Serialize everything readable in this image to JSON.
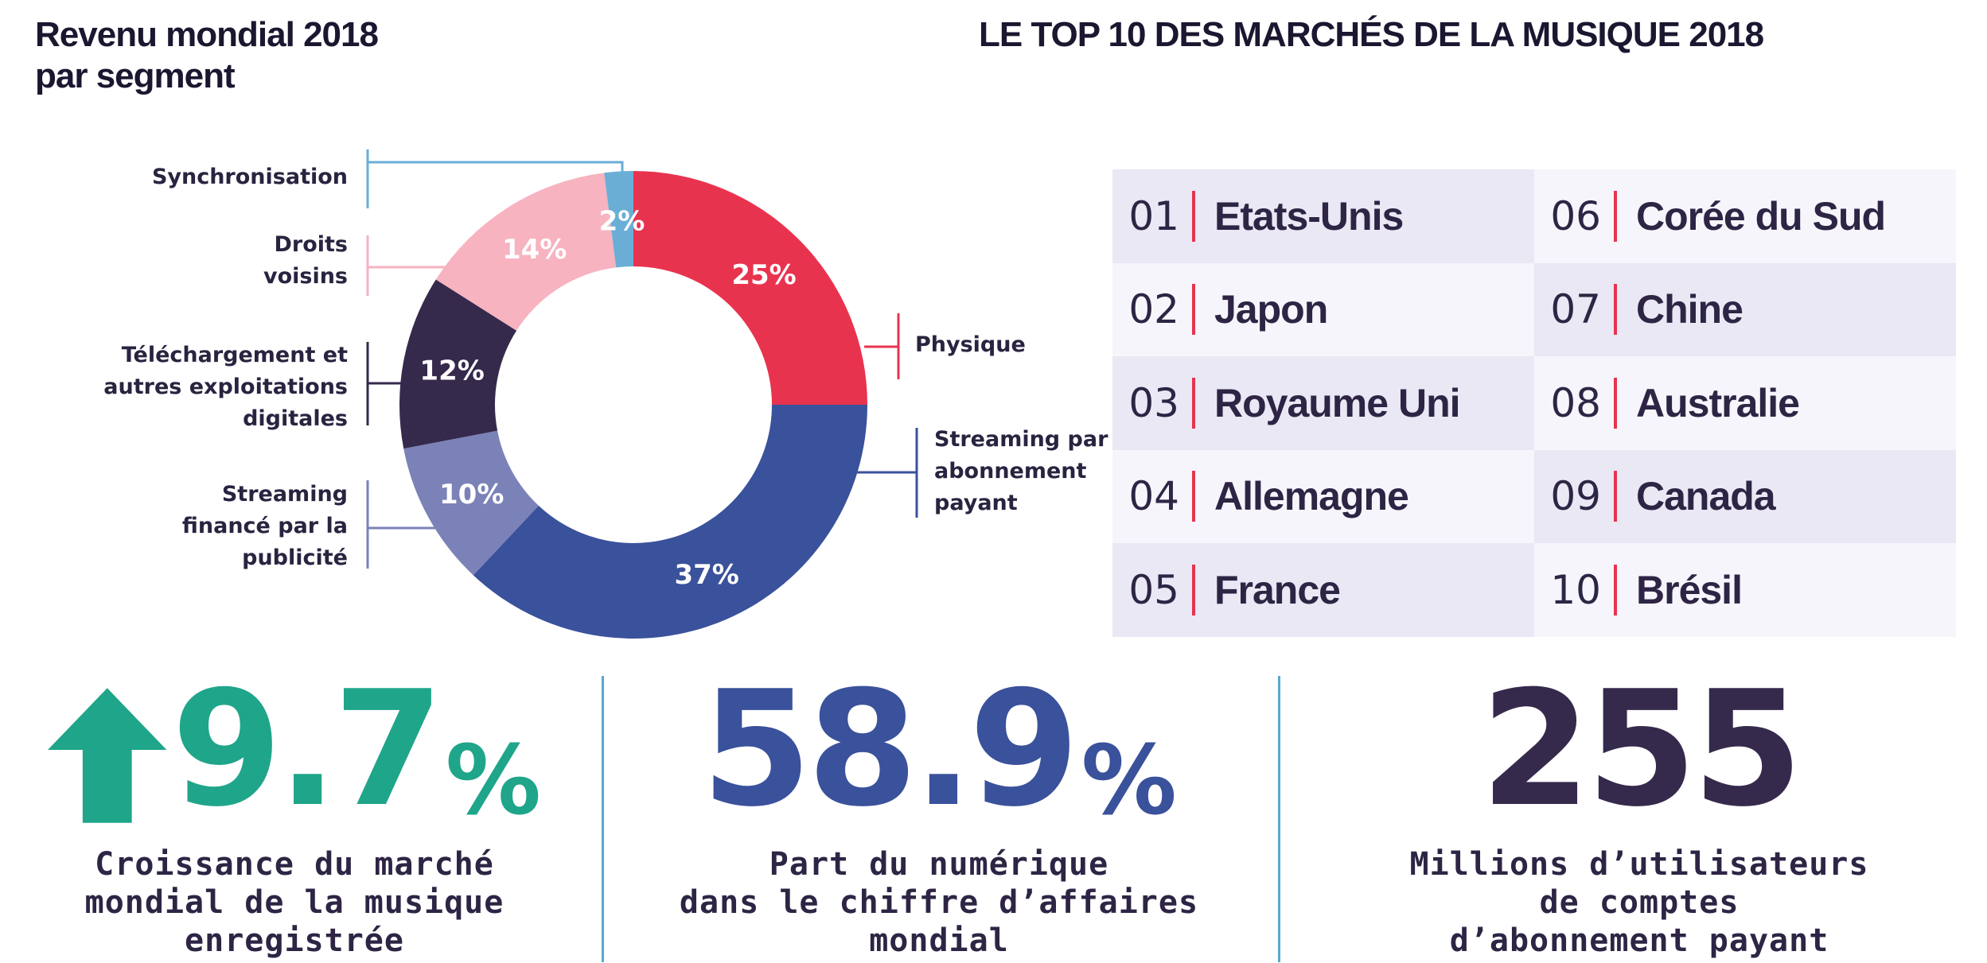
{
  "left_title": [
    "Revenu mondial 2018",
    "par segment"
  ],
  "right_title": "LE TOP 10 DES MARCHÉS DE LA MUSIQUE 2018",
  "chart_data": {
    "type": "pie",
    "title": "Revenu mondial 2018 par segment",
    "slices": [
      {
        "label": "Physique",
        "value": 25,
        "display": "25%",
        "color": "#e8334f"
      },
      {
        "label": "Streaming par abonnement payant",
        "value": 37,
        "display": "37%",
        "color": "#3a519b"
      },
      {
        "label": "Streaming financé par la publicité",
        "value": 10,
        "display": "10%",
        "color": "#7b82b8"
      },
      {
        "label": "Téléchargement et autres exploitations digitales",
        "value": 12,
        "display": "12%",
        "color": "#352a4c"
      },
      {
        "label": "Droits voisins",
        "value": 14,
        "display": "14%",
        "color": "#f7b3c0"
      },
      {
        "label": "Synchronisation",
        "value": 2,
        "display": "2%",
        "color": "#6aaed6"
      }
    ]
  },
  "segment_labels": {
    "synchronisation": "Synchronisation",
    "droits_l1": "Droits",
    "droits_l2": "voisins",
    "telechargement_l1": "Téléchargement et",
    "telechargement_l2": "autres exploitations",
    "telechargement_l3": "digitales",
    "streaming_pub_l1": "Streaming",
    "streaming_pub_l2": "financé par la",
    "streaming_pub_l3": "publicité",
    "physique": "Physique",
    "streaming_abo_l1": "Streaming par",
    "streaming_abo_l2": "abonnement",
    "streaming_abo_l3": "payant"
  },
  "top10": [
    {
      "rank": "01",
      "name": "Etats-Unis"
    },
    {
      "rank": "02",
      "name": "Japon"
    },
    {
      "rank": "03",
      "name": "Royaume Uni"
    },
    {
      "rank": "04",
      "name": "Allemagne"
    },
    {
      "rank": "05",
      "name": "France"
    },
    {
      "rank": "06",
      "name": "Corée du Sud"
    },
    {
      "rank": "07",
      "name": "Chine"
    },
    {
      "rank": "08",
      "name": "Australie"
    },
    {
      "rank": "09",
      "name": "Canada"
    },
    {
      "rank": "10",
      "name": "Brésil"
    }
  ],
  "kpis": [
    {
      "number": "9.7",
      "suffix": "%",
      "color": "#1fa58a",
      "icon": "arrow-up-icon",
      "caption": [
        "Croissance du marché",
        "mondial de la musique",
        "enregistrée"
      ]
    },
    {
      "number": "58.9",
      "suffix": "%",
      "color": "#3a519b",
      "caption": [
        "Part du numérique",
        "dans le chiffre d’affaires",
        "mondial"
      ]
    },
    {
      "number": "255",
      "suffix": "",
      "color": "#352a4c",
      "caption": [
        "Millions d’utilisateurs",
        "de comptes",
        "d’abonnement payant"
      ]
    }
  ],
  "colors": {
    "row_light": "#f6f5fb",
    "row_dark": "#e9e8f4",
    "accent_red": "#e8334f",
    "rule_blue": "#5aa8d0"
  }
}
